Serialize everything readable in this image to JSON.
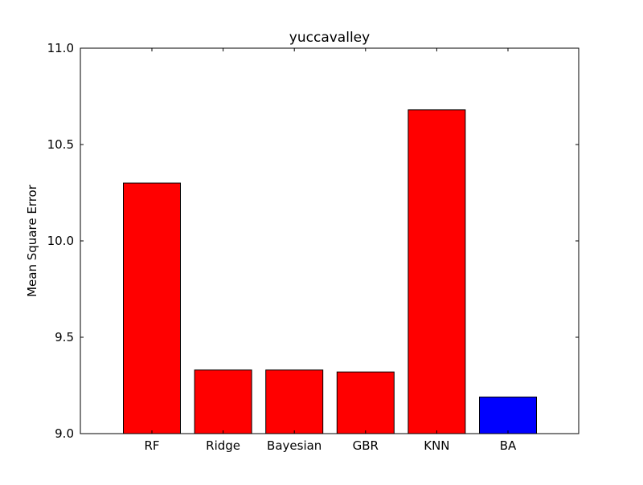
{
  "chart_data": {
    "type": "bar",
    "title": "yuccavalley",
    "xlabel": "",
    "ylabel": "Mean Square Error",
    "categories": [
      "RF",
      "Ridge",
      "Bayesian",
      "GBR",
      "KNN",
      "BA"
    ],
    "values": [
      10.3,
      9.33,
      9.33,
      9.32,
      10.68,
      9.19
    ],
    "bar_colors": [
      "#ff0000",
      "#ff0000",
      "#ff0000",
      "#ff0000",
      "#ff0000",
      "#0000ff"
    ],
    "ylim": [
      9.0,
      11.0
    ],
    "yticks": [
      "9.0",
      "9.5",
      "10.0",
      "10.5",
      "11.0"
    ],
    "ytick_values": [
      9.0,
      9.5,
      10.0,
      10.5,
      11.0
    ],
    "grid": false,
    "legend": "none"
  }
}
